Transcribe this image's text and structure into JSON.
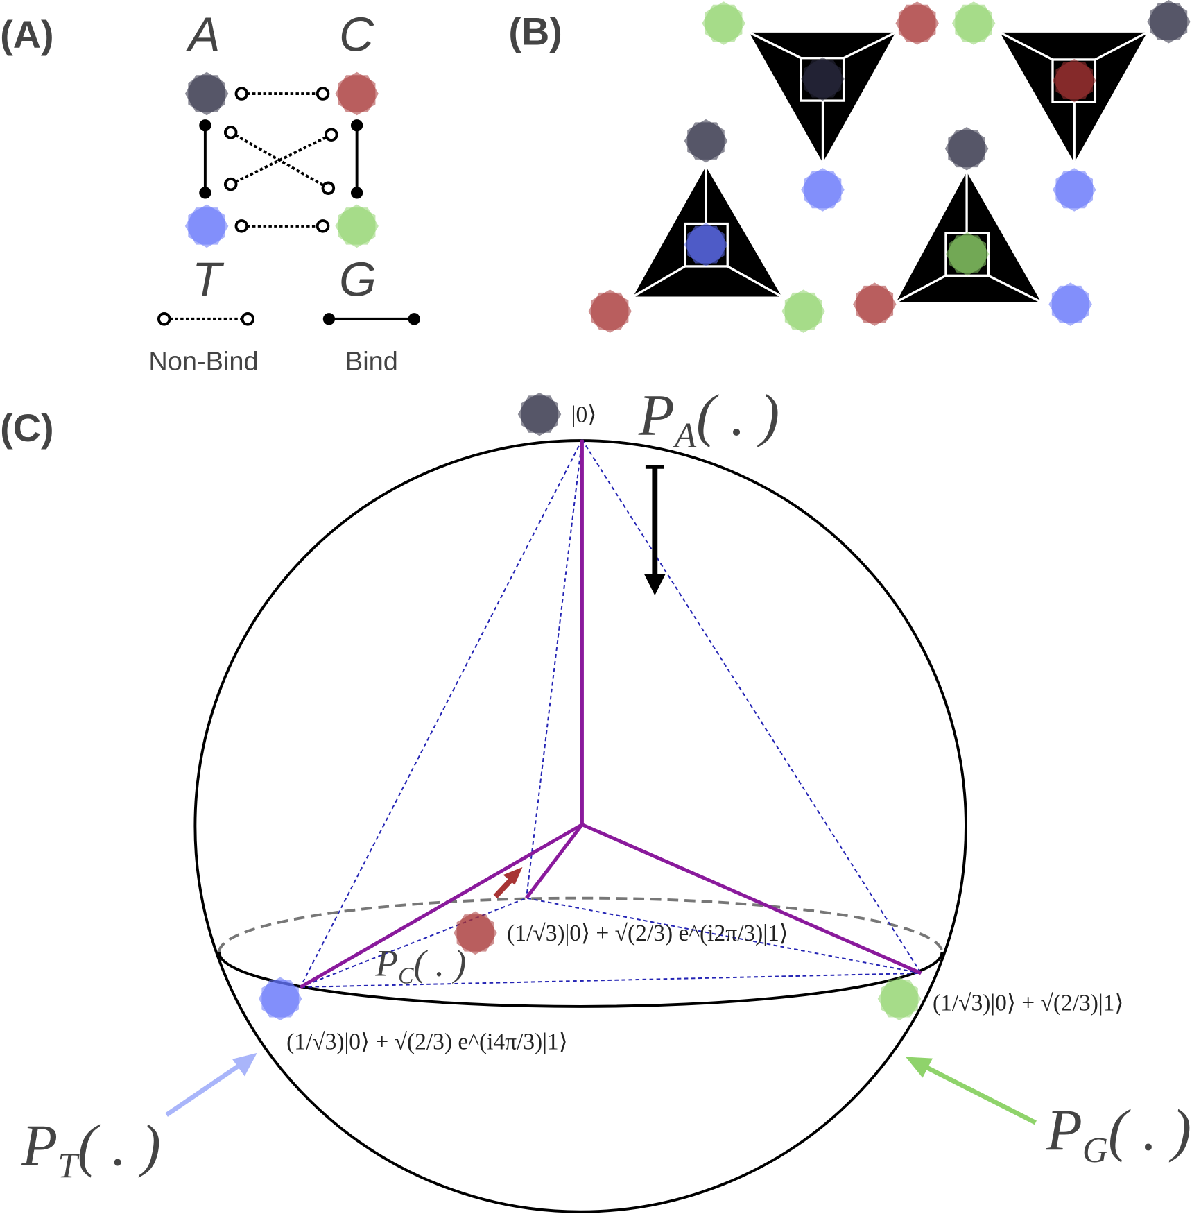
{
  "panels": {
    "a": "(A)",
    "b": "(B)",
    "c": "(C)"
  },
  "bases": {
    "A": "A",
    "C": "C",
    "T": "T",
    "G": "G"
  },
  "legend": {
    "non_bind": "Non-Bind",
    "bind": "Bind"
  },
  "colors": {
    "A": "#2b2b42",
    "C": "#a83434",
    "T": "#6272fa",
    "G": "#90d46c",
    "edge": "#8a1a9c",
    "dashed": "#2424b4",
    "arrow_T": "#a9b5fa",
    "arrow_G": "#8fd36b",
    "arrow_C": "#a83434"
  },
  "states": {
    "A": "|0⟩",
    "C": "(1/√3)|0⟩ + √(2/3) e^(i2π/3)|1⟩",
    "T": "(1/√3)|0⟩ + √(2/3) e^(i4π/3)|1⟩",
    "G": "(1/√3)|0⟩ + √(2/3)|1⟩"
  },
  "projectors": {
    "A": {
      "p": "P",
      "sub": "A",
      "arg": "( . )"
    },
    "C": {
      "p": "P",
      "sub": "C",
      "arg": "( . )"
    },
    "T": {
      "p": "P",
      "sub": "T",
      "arg": "( . )"
    },
    "G": {
      "p": "P",
      "sub": "G",
      "arg": "( . )"
    }
  }
}
